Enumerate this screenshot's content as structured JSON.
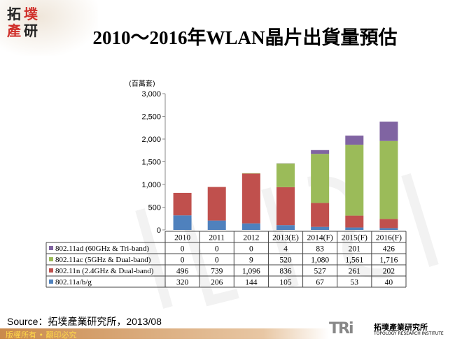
{
  "logo": {
    "chars": [
      "拓",
      "墣",
      "產",
      "研"
    ]
  },
  "title": "2010～2016年WLAN晶片出貨量預估",
  "source": "Source：拓墣產業研究所，2013/08",
  "footer": {
    "copyright": "版權所有 • 翻印必究",
    "brand_mark": "TRi",
    "brand_cn": "拓墣產業研究所",
    "brand_en": "TOPOLOGY RESEARCH INSTITUTE"
  },
  "chart_data": {
    "type": "bar",
    "stacked": true,
    "ylabel": "(百萬套)",
    "ylim": [
      0,
      3000
    ],
    "yticks": [
      "0",
      "500",
      "1,000",
      "1,500",
      "2,000",
      "2,500",
      "3,000"
    ],
    "yticks_values": [
      0,
      500,
      1000,
      1500,
      2000,
      2500,
      3000
    ],
    "categories": [
      "2010",
      "2011",
      "2012",
      "2013(E)",
      "2014(F)",
      "2015(F)",
      "2016(F)"
    ],
    "series": [
      {
        "name": "802.11ad (60GHz & Tri-band)",
        "color": "#8064a2",
        "values": [
          0,
          0,
          0,
          4,
          83,
          201,
          426
        ],
        "labels": [
          "0",
          "0",
          "0",
          "4",
          "83",
          "201",
          "426"
        ]
      },
      {
        "name": "802.11ac (5GHz & Dual-band)",
        "color": "#9bbb59",
        "values": [
          0,
          0,
          9,
          520,
          1080,
          1561,
          1716
        ],
        "labels": [
          "0",
          "0",
          "9",
          "520",
          "1,080",
          "1,561",
          "1,716"
        ]
      },
      {
        "name": "802.11n (2.4GHz & Dual-band)",
        "color": "#c0504d",
        "values": [
          496,
          739,
          1096,
          836,
          527,
          261,
          202
        ],
        "labels": [
          "496",
          "739",
          "1,096",
          "836",
          "527",
          "261",
          "202"
        ]
      },
      {
        "name": "802.11a/b/g",
        "color": "#4f81bd",
        "values": [
          320,
          206,
          144,
          105,
          67,
          53,
          40
        ],
        "labels": [
          "320",
          "206",
          "144",
          "105",
          "67",
          "53",
          "40"
        ]
      }
    ],
    "legend": "data-table",
    "grid": false
  }
}
